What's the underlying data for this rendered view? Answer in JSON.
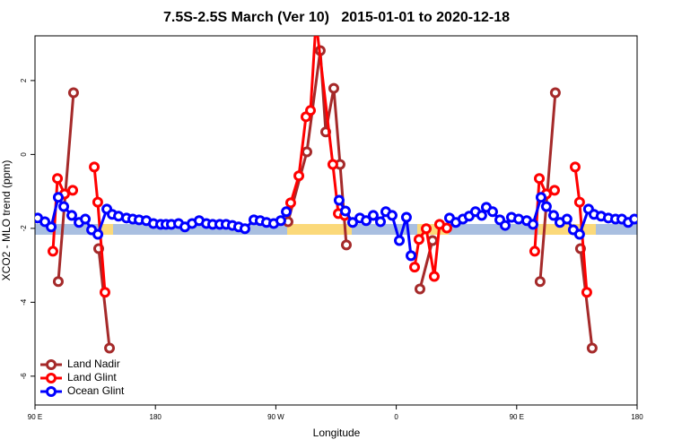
{
  "chart_data": {
    "type": "line",
    "title": "7.5S-2.5S March (Ver 10)   2015-01-01 to 2020-12-18",
    "xlabel": "Longitude",
    "ylabel": "XCO2 - MLO trend (ppm)",
    "xlim": [
      90,
      540
    ],
    "ylim": [
      -6.78,
      3.21
    ],
    "xticks": [
      {
        "value": 90,
        "label": "90 E"
      },
      180,
      {
        "value": 270,
        "label": "90 W"
      },
      {
        "value": 360,
        "label": "0"
      },
      {
        "value": 450,
        "label": "90 E"
      },
      {
        "value": 540,
        "label": "180"
      }
    ],
    "yticks": [
      -6,
      -4,
      -2,
      0,
      2
    ],
    "legend": "bottom-left",
    "series": [
      {
        "name": "Land Nadir",
        "color": "#a52a2a",
        "x": [
          107.4,
          118.8,
          128,
          137.6,
          145.7,
          200,
          279.1,
          293.2,
          303.2,
          307.3,
          313.3,
          318.0,
          322.7,
          350,
          377.7,
          387.1,
          420,
          467.5,
          478.9,
          488,
          497.7,
          506.4
        ],
        "values": [
          -3.44,
          1.67,
          null,
          -2.55,
          -5.24,
          null,
          -1.82,
          0.07,
          2.81,
          0.61,
          1.79,
          -0.27,
          -2.45,
          null,
          -3.64,
          -2.33,
          null,
          -3.44,
          1.67,
          null,
          -2.55,
          -5.24
        ]
      },
      {
        "name": "Land Glint",
        "color": "#ff0000",
        "x": [
          103.4,
          106.8,
          112.1,
          118.2,
          126,
          134.3,
          136.9,
          142.3,
          200,
          281.1,
          287.2,
          292.5,
          295.9,
          300.0,
          312.6,
          316.7,
          321.4,
          350,
          373.7,
          377.0,
          382.4,
          388.4,
          392.4,
          397.8,
          430,
          463.5,
          466.9,
          472.2,
          478.3,
          486,
          493.7,
          497.0,
          502.4
        ],
        "values": [
          -2.62,
          -0.65,
          -1.07,
          -0.97,
          null,
          -0.34,
          -1.29,
          -3.73,
          null,
          -1.31,
          -0.58,
          1.02,
          1.19,
          3.6,
          -0.27,
          -1.6,
          -1.65,
          null,
          -3.05,
          -2.3,
          -2.01,
          -3.3,
          -1.89,
          -1.99,
          null,
          -2.62,
          -0.65,
          -1.07,
          -0.97,
          null,
          -0.34,
          -1.29,
          -3.73
        ]
      },
      {
        "name": "Ocean Glint",
        "color": "#0000ff",
        "x": [
          92.0,
          97.4,
          102.1,
          107.4,
          111.5,
          117.5,
          122.9,
          127.6,
          132.3,
          137.0,
          143.7,
          147.7,
          152.4,
          158.4,
          163.1,
          167.8,
          173.2,
          178.5,
          183.9,
          187.9,
          191.9,
          197.3,
          202.0,
          207.4,
          212.7,
          218.1,
          222.8,
          228.1,
          232.8,
          237.5,
          242.2,
          246.9,
          253.6,
          258.3,
          263.0,
          268.4,
          273.7,
          277.8,
          297,
          317.3,
          322.0,
          327.4,
          332.8,
          337.5,
          342.8,
          348.2,
          352.2,
          356.9,
          362.3,
          367.6,
          371.0,
          385,
          399.8,
          404.5,
          409.8,
          414.5,
          419.2,
          423.9,
          427.3,
          432.0,
          437.4,
          441.4,
          446.1,
          451.5,
          457.5,
          462.2,
          468.2,
          472.2,
          477.6,
          482.3,
          487.6,
          492.3,
          497.0,
          503.7,
          507.8,
          513.1,
          518.5,
          523.9,
          528.6,
          533.3,
          538.0
        ],
        "values": [
          -1.72,
          -1.82,
          -1.96,
          -1.16,
          -1.41,
          -1.65,
          -1.84,
          -1.75,
          -2.04,
          -2.16,
          -1.48,
          -1.62,
          -1.67,
          -1.72,
          -1.75,
          -1.77,
          -1.79,
          -1.87,
          -1.89,
          -1.89,
          -1.89,
          -1.87,
          -1.96,
          -1.87,
          -1.79,
          -1.87,
          -1.89,
          -1.89,
          -1.89,
          -1.92,
          -1.96,
          -2.01,
          -1.77,
          -1.79,
          -1.84,
          -1.87,
          -1.79,
          -1.55,
          null,
          -1.24,
          -1.53,
          -1.84,
          -1.72,
          -1.79,
          -1.65,
          -1.82,
          -1.55,
          -1.65,
          -2.33,
          -1.7,
          -2.74,
          null,
          -1.72,
          -1.84,
          -1.75,
          -1.67,
          -1.55,
          -1.65,
          -1.43,
          -1.55,
          -1.77,
          -1.92,
          -1.7,
          -1.75,
          -1.79,
          -1.89,
          -1.16,
          -1.41,
          -1.65,
          -1.84,
          -1.75,
          -2.04,
          -2.16,
          -1.48,
          -1.62,
          -1.67,
          -1.72,
          -1.75,
          -1.75,
          -1.84,
          -1.75
        ]
      }
    ]
  }
}
